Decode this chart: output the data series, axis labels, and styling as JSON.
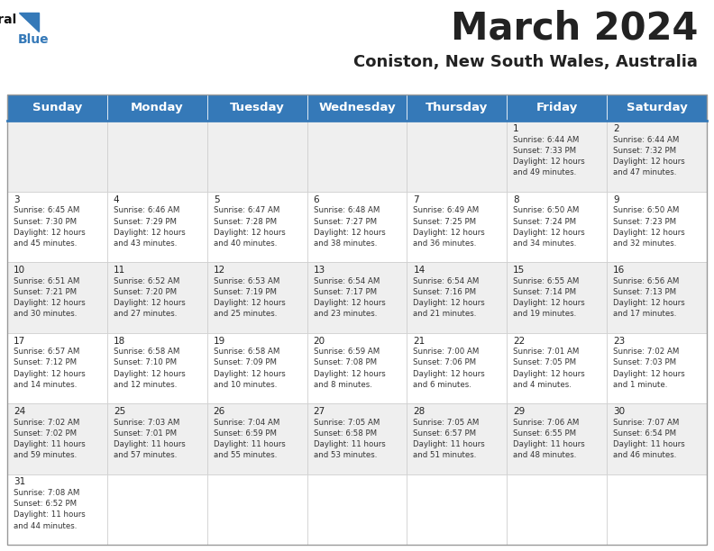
{
  "title": "March 2024",
  "subtitle": "Coniston, New South Wales, Australia",
  "header_color": "#3579b8",
  "header_text_color": "#ffffff",
  "bg_color": "#ffffff",
  "alt_row_color": "#efefef",
  "border_color": "#aaaaaa",
  "text_color": "#222222",
  "cell_text_color": "#333333",
  "days_of_week": [
    "Sunday",
    "Monday",
    "Tuesday",
    "Wednesday",
    "Thursday",
    "Friday",
    "Saturday"
  ],
  "title_fontsize": 30,
  "subtitle_fontsize": 13,
  "header_fontsize": 9.5,
  "cell_fontsize": 6.2,
  "day_num_fontsize": 7.5,
  "calendar": [
    [
      {
        "day": 0,
        "data": ""
      },
      {
        "day": 0,
        "data": ""
      },
      {
        "day": 0,
        "data": ""
      },
      {
        "day": 0,
        "data": ""
      },
      {
        "day": 0,
        "data": ""
      },
      {
        "day": 1,
        "data": "Sunrise: 6:44 AM\nSunset: 7:33 PM\nDaylight: 12 hours\nand 49 minutes."
      },
      {
        "day": 2,
        "data": "Sunrise: 6:44 AM\nSunset: 7:32 PM\nDaylight: 12 hours\nand 47 minutes."
      }
    ],
    [
      {
        "day": 3,
        "data": "Sunrise: 6:45 AM\nSunset: 7:30 PM\nDaylight: 12 hours\nand 45 minutes."
      },
      {
        "day": 4,
        "data": "Sunrise: 6:46 AM\nSunset: 7:29 PM\nDaylight: 12 hours\nand 43 minutes."
      },
      {
        "day": 5,
        "data": "Sunrise: 6:47 AM\nSunset: 7:28 PM\nDaylight: 12 hours\nand 40 minutes."
      },
      {
        "day": 6,
        "data": "Sunrise: 6:48 AM\nSunset: 7:27 PM\nDaylight: 12 hours\nand 38 minutes."
      },
      {
        "day": 7,
        "data": "Sunrise: 6:49 AM\nSunset: 7:25 PM\nDaylight: 12 hours\nand 36 minutes."
      },
      {
        "day": 8,
        "data": "Sunrise: 6:50 AM\nSunset: 7:24 PM\nDaylight: 12 hours\nand 34 minutes."
      },
      {
        "day": 9,
        "data": "Sunrise: 6:50 AM\nSunset: 7:23 PM\nDaylight: 12 hours\nand 32 minutes."
      }
    ],
    [
      {
        "day": 10,
        "data": "Sunrise: 6:51 AM\nSunset: 7:21 PM\nDaylight: 12 hours\nand 30 minutes."
      },
      {
        "day": 11,
        "data": "Sunrise: 6:52 AM\nSunset: 7:20 PM\nDaylight: 12 hours\nand 27 minutes."
      },
      {
        "day": 12,
        "data": "Sunrise: 6:53 AM\nSunset: 7:19 PM\nDaylight: 12 hours\nand 25 minutes."
      },
      {
        "day": 13,
        "data": "Sunrise: 6:54 AM\nSunset: 7:17 PM\nDaylight: 12 hours\nand 23 minutes."
      },
      {
        "day": 14,
        "data": "Sunrise: 6:54 AM\nSunset: 7:16 PM\nDaylight: 12 hours\nand 21 minutes."
      },
      {
        "day": 15,
        "data": "Sunrise: 6:55 AM\nSunset: 7:14 PM\nDaylight: 12 hours\nand 19 minutes."
      },
      {
        "day": 16,
        "data": "Sunrise: 6:56 AM\nSunset: 7:13 PM\nDaylight: 12 hours\nand 17 minutes."
      }
    ],
    [
      {
        "day": 17,
        "data": "Sunrise: 6:57 AM\nSunset: 7:12 PM\nDaylight: 12 hours\nand 14 minutes."
      },
      {
        "day": 18,
        "data": "Sunrise: 6:58 AM\nSunset: 7:10 PM\nDaylight: 12 hours\nand 12 minutes."
      },
      {
        "day": 19,
        "data": "Sunrise: 6:58 AM\nSunset: 7:09 PM\nDaylight: 12 hours\nand 10 minutes."
      },
      {
        "day": 20,
        "data": "Sunrise: 6:59 AM\nSunset: 7:08 PM\nDaylight: 12 hours\nand 8 minutes."
      },
      {
        "day": 21,
        "data": "Sunrise: 7:00 AM\nSunset: 7:06 PM\nDaylight: 12 hours\nand 6 minutes."
      },
      {
        "day": 22,
        "data": "Sunrise: 7:01 AM\nSunset: 7:05 PM\nDaylight: 12 hours\nand 4 minutes."
      },
      {
        "day": 23,
        "data": "Sunrise: 7:02 AM\nSunset: 7:03 PM\nDaylight: 12 hours\nand 1 minute."
      }
    ],
    [
      {
        "day": 24,
        "data": "Sunrise: 7:02 AM\nSunset: 7:02 PM\nDaylight: 11 hours\nand 59 minutes."
      },
      {
        "day": 25,
        "data": "Sunrise: 7:03 AM\nSunset: 7:01 PM\nDaylight: 11 hours\nand 57 minutes."
      },
      {
        "day": 26,
        "data": "Sunrise: 7:04 AM\nSunset: 6:59 PM\nDaylight: 11 hours\nand 55 minutes."
      },
      {
        "day": 27,
        "data": "Sunrise: 7:05 AM\nSunset: 6:58 PM\nDaylight: 11 hours\nand 53 minutes."
      },
      {
        "day": 28,
        "data": "Sunrise: 7:05 AM\nSunset: 6:57 PM\nDaylight: 11 hours\nand 51 minutes."
      },
      {
        "day": 29,
        "data": "Sunrise: 7:06 AM\nSunset: 6:55 PM\nDaylight: 11 hours\nand 48 minutes."
      },
      {
        "day": 30,
        "data": "Sunrise: 7:07 AM\nSunset: 6:54 PM\nDaylight: 11 hours\nand 46 minutes."
      }
    ],
    [
      {
        "day": 31,
        "data": "Sunrise: 7:08 AM\nSunset: 6:52 PM\nDaylight: 11 hours\nand 44 minutes."
      },
      {
        "day": 0,
        "data": ""
      },
      {
        "day": 0,
        "data": ""
      },
      {
        "day": 0,
        "data": ""
      },
      {
        "day": 0,
        "data": ""
      },
      {
        "day": 0,
        "data": ""
      },
      {
        "day": 0,
        "data": ""
      }
    ]
  ]
}
